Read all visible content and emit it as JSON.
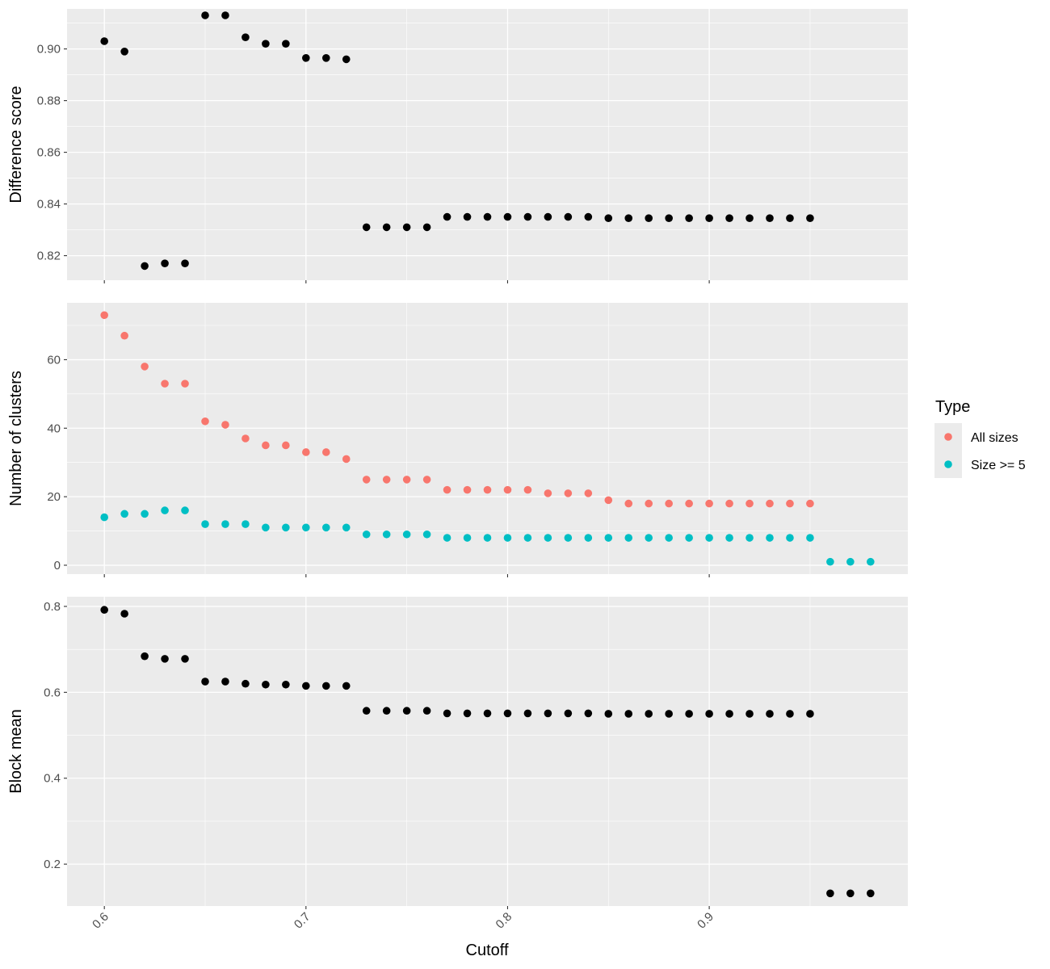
{
  "chart_data": {
    "type": "scatter",
    "xlabel": "Cutoff",
    "x_ticks": [
      "0.6",
      "0.7",
      "0.8",
      "0.9"
    ],
    "x_tick_values": [
      0.6,
      0.7,
      0.8,
      0.9
    ],
    "xlim": [
      0.5815,
      0.9985
    ],
    "legend": {
      "title": "Type",
      "placement": "right",
      "entries": [
        {
          "label": "All sizes",
          "color": "#F8766D"
        },
        {
          "label": "Size >= 5",
          "color": "#00BFC4"
        }
      ]
    },
    "panels": [
      {
        "ylabel": "Difference score",
        "ylim": [
          0.8105,
          0.9155
        ],
        "y_ticks": [
          "0.82",
          "0.84",
          "0.86",
          "0.88",
          "0.90"
        ],
        "y_tick_values": [
          0.82,
          0.84,
          0.86,
          0.88,
          0.9
        ],
        "series": [
          {
            "color": "#000000",
            "x": [
              0.6,
              0.61,
              0.62,
              0.63,
              0.64,
              0.65,
              0.66,
              0.67,
              0.68,
              0.69,
              0.7,
              0.71,
              0.72,
              0.73,
              0.74,
              0.75,
              0.76,
              0.77,
              0.78,
              0.79,
              0.8,
              0.81,
              0.82,
              0.83,
              0.84,
              0.85,
              0.86,
              0.87,
              0.88,
              0.89,
              0.9,
              0.91,
              0.92,
              0.93,
              0.94,
              0.95
            ],
            "y": [
              0.903,
              0.899,
              0.816,
              0.817,
              0.817,
              0.913,
              0.913,
              0.9045,
              0.902,
              0.902,
              0.8965,
              0.8965,
              0.896,
              0.831,
              0.831,
              0.831,
              0.831,
              0.835,
              0.835,
              0.835,
              0.835,
              0.835,
              0.835,
              0.835,
              0.835,
              0.8345,
              0.8345,
              0.8345,
              0.8345,
              0.8345,
              0.8345,
              0.8345,
              0.8345,
              0.8345,
              0.8345,
              0.8345
            ]
          }
        ]
      },
      {
        "ylabel": "Number of clusters",
        "ylim": [
          -2.6,
          76.6
        ],
        "y_ticks": [
          "0",
          "20",
          "40",
          "60"
        ],
        "y_tick_values": [
          0,
          20,
          40,
          60
        ],
        "series": [
          {
            "name": "All sizes",
            "color": "#F8766D",
            "x": [
              0.6,
              0.61,
              0.62,
              0.63,
              0.64,
              0.65,
              0.66,
              0.67,
              0.68,
              0.69,
              0.7,
              0.71,
              0.72,
              0.73,
              0.74,
              0.75,
              0.76,
              0.77,
              0.78,
              0.79,
              0.8,
              0.81,
              0.82,
              0.83,
              0.84,
              0.85,
              0.86,
              0.87,
              0.88,
              0.89,
              0.9,
              0.91,
              0.92,
              0.93,
              0.94,
              0.95
            ],
            "y": [
              73,
              67,
              58,
              53,
              53,
              42,
              41,
              37,
              35,
              35,
              33,
              33,
              31,
              25,
              25,
              25,
              25,
              22,
              22,
              22,
              22,
              22,
              21,
              21,
              21,
              19,
              18,
              18,
              18,
              18,
              18,
              18,
              18,
              18,
              18,
              18
            ]
          },
          {
            "name": "Size >= 5",
            "color": "#00BFC4",
            "x": [
              0.6,
              0.61,
              0.62,
              0.63,
              0.64,
              0.65,
              0.66,
              0.67,
              0.68,
              0.69,
              0.7,
              0.71,
              0.72,
              0.73,
              0.74,
              0.75,
              0.76,
              0.77,
              0.78,
              0.79,
              0.8,
              0.81,
              0.82,
              0.83,
              0.84,
              0.85,
              0.86,
              0.87,
              0.88,
              0.89,
              0.9,
              0.91,
              0.92,
              0.93,
              0.94,
              0.95,
              0.96,
              0.97,
              0.98
            ],
            "y": [
              14,
              15,
              15,
              16,
              16,
              12,
              12,
              12,
              11,
              11,
              11,
              11,
              11,
              9,
              9,
              9,
              9,
              8,
              8,
              8,
              8,
              8,
              8,
              8,
              8,
              8,
              8,
              8,
              8,
              8,
              8,
              8,
              8,
              8,
              8,
              8,
              1,
              1,
              1
            ]
          }
        ]
      },
      {
        "ylabel": "Block mean",
        "ylim": [
          0.1025,
          0.8225
        ],
        "y_ticks": [
          "0.2",
          "0.4",
          "0.6",
          "0.8"
        ],
        "y_tick_values": [
          0.2,
          0.4,
          0.6,
          0.8
        ],
        "series": [
          {
            "color": "#000000",
            "x": [
              0.6,
              0.61,
              0.62,
              0.63,
              0.64,
              0.65,
              0.66,
              0.67,
              0.68,
              0.69,
              0.7,
              0.71,
              0.72,
              0.73,
              0.74,
              0.75,
              0.76,
              0.77,
              0.78,
              0.79,
              0.8,
              0.81,
              0.82,
              0.83,
              0.84,
              0.85,
              0.86,
              0.87,
              0.88,
              0.89,
              0.9,
              0.91,
              0.92,
              0.93,
              0.94,
              0.95,
              0.96,
              0.97,
              0.98
            ],
            "y": [
              0.792,
              0.783,
              0.684,
              0.678,
              0.678,
              0.625,
              0.625,
              0.62,
              0.618,
              0.618,
              0.615,
              0.615,
              0.615,
              0.557,
              0.557,
              0.557,
              0.557,
              0.551,
              0.551,
              0.551,
              0.551,
              0.551,
              0.551,
              0.551,
              0.551,
              0.55,
              0.55,
              0.55,
              0.55,
              0.55,
              0.55,
              0.55,
              0.55,
              0.55,
              0.55,
              0.55,
              0.132,
              0.132,
              0.132
            ]
          }
        ]
      }
    ]
  }
}
